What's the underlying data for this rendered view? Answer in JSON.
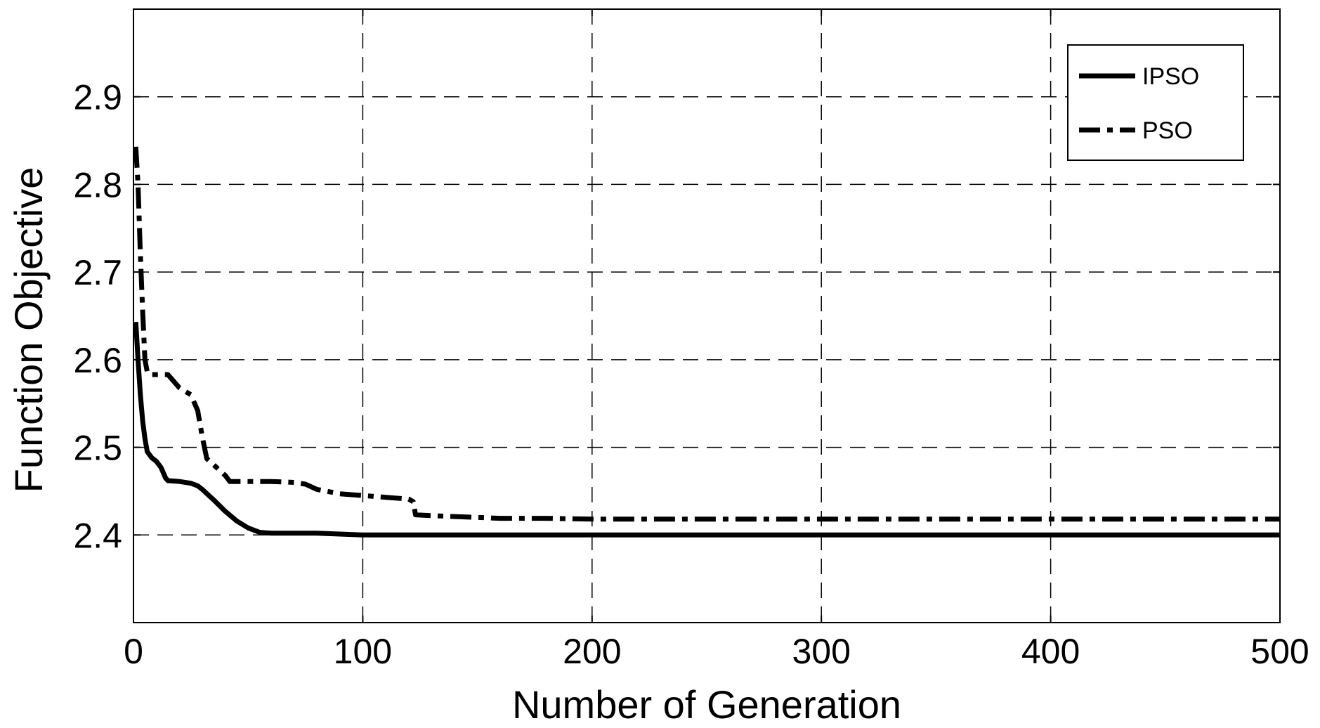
{
  "chart_data": {
    "type": "line",
    "title": "",
    "xlabel": "Number of Generation",
    "ylabel": "Function Objective",
    "xlim": [
      0,
      500
    ],
    "ylim": [
      2.3,
      3.0
    ],
    "xticks": [
      0,
      100,
      200,
      300,
      400,
      500
    ],
    "xtick_labels": [
      "0",
      "100",
      "200",
      "300",
      "400",
      "500"
    ],
    "yticks": [
      2.4,
      2.5,
      2.6,
      2.7,
      2.8,
      2.9
    ],
    "ytick_labels": [
      "2.4",
      "2.5",
      "2.6",
      "2.7",
      "2.8",
      "2.9"
    ],
    "grid": true,
    "legend_position": "top-right",
    "series": [
      {
        "name": "IPSO",
        "style": "solid",
        "color": "#000000",
        "x": [
          1,
          2,
          3,
          4,
          5,
          6,
          8,
          10,
          12,
          14,
          15,
          20,
          25,
          28,
          30,
          35,
          40,
          45,
          50,
          55,
          60,
          70,
          80,
          100,
          150,
          200,
          300,
          400,
          500
        ],
        "y": [
          2.643,
          2.6,
          2.56,
          2.53,
          2.51,
          2.495,
          2.488,
          2.484,
          2.477,
          2.465,
          2.462,
          2.461,
          2.459,
          2.456,
          2.452,
          2.44,
          2.427,
          2.416,
          2.408,
          2.403,
          2.402,
          2.402,
          2.402,
          2.4,
          2.4,
          2.4,
          2.4,
          2.4,
          2.4
        ]
      },
      {
        "name": "PSO",
        "style": "dashdot",
        "color": "#000000",
        "x": [
          1,
          2,
          3,
          4,
          5,
          6,
          7,
          15,
          20,
          25,
          28,
          30,
          32,
          35,
          40,
          42,
          50,
          60,
          70,
          75,
          80,
          90,
          100,
          110,
          120,
          122,
          123,
          130,
          150,
          160,
          180,
          200,
          300,
          400,
          500
        ],
        "y": [
          2.843,
          2.8,
          2.72,
          2.655,
          2.6,
          2.586,
          2.583,
          2.583,
          2.568,
          2.56,
          2.542,
          2.512,
          2.487,
          2.48,
          2.468,
          2.461,
          2.461,
          2.461,
          2.46,
          2.458,
          2.452,
          2.447,
          2.445,
          2.443,
          2.441,
          2.438,
          2.423,
          2.422,
          2.42,
          2.419,
          2.419,
          2.418,
          2.418,
          2.418,
          2.418
        ]
      }
    ]
  }
}
